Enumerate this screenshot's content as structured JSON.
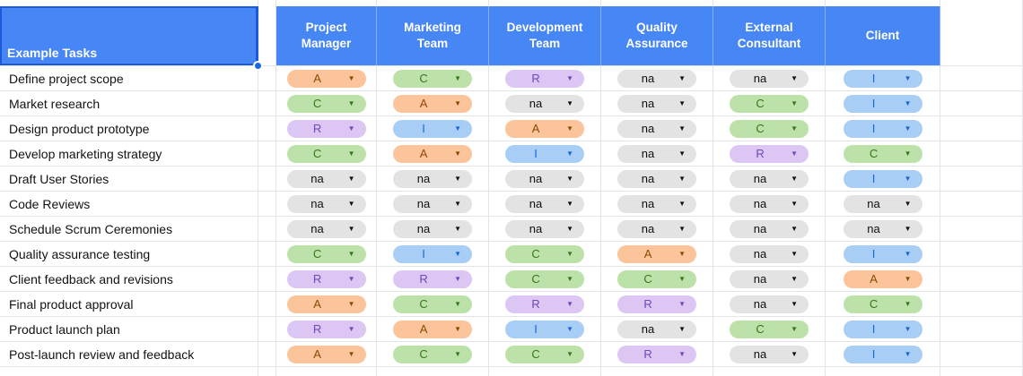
{
  "app": {
    "kind": "spreadsheet-raci-matrix"
  },
  "colors": {
    "header_bg": "#4786F5",
    "grid_line": "#E2E4E9",
    "selection_border": "#1B5BD9",
    "selection_handle": "#1A66E8"
  },
  "dropdown_arrow": "▼",
  "legend_colors": {
    "A": {
      "bg": "#FBC49B",
      "fg": "#8C4A03"
    },
    "C": {
      "bg": "#BDE2A9",
      "fg": "#38761D"
    },
    "R": {
      "bg": "#DCC7F4",
      "fg": "#6D49B8"
    },
    "I": {
      "bg": "#A9CEF6",
      "fg": "#1A66D9"
    },
    "na": {
      "bg": "#E3E3E4",
      "fg": "#111111"
    }
  },
  "table": {
    "task_header": "Example Tasks",
    "columns": [
      "Project Manager",
      "Marketing Team",
      "Development Team",
      "Quality Assurance",
      "External Consultant",
      "Client"
    ],
    "rows": [
      {
        "task": "Define project scope",
        "values": [
          "A",
          "C",
          "R",
          "na",
          "na",
          "I"
        ]
      },
      {
        "task": "Market research",
        "values": [
          "C",
          "A",
          "na",
          "na",
          "C",
          "I"
        ]
      },
      {
        "task": "Design product prototype",
        "values": [
          "R",
          "I",
          "A",
          "na",
          "C",
          "I"
        ]
      },
      {
        "task": "Develop marketing strategy",
        "values": [
          "C",
          "A",
          "I",
          "na",
          "R",
          "C"
        ]
      },
      {
        "task": "Draft User Stories",
        "values": [
          "na",
          "na",
          "na",
          "na",
          "na",
          "I"
        ]
      },
      {
        "task": "Code Reviews",
        "values": [
          "na",
          "na",
          "na",
          "na",
          "na",
          "na"
        ]
      },
      {
        "task": "Schedule Scrum Ceremonies",
        "values": [
          "na",
          "na",
          "na",
          "na",
          "na",
          "na"
        ]
      },
      {
        "task": "Quality assurance testing",
        "values": [
          "C",
          "I",
          "C",
          "A",
          "na",
          "I"
        ]
      },
      {
        "task": "Client feedback and revisions",
        "values": [
          "R",
          "R",
          "C",
          "C",
          "na",
          "A"
        ]
      },
      {
        "task": "Final product approval",
        "values": [
          "A",
          "C",
          "R",
          "R",
          "na",
          "C"
        ]
      },
      {
        "task": "Product launch plan",
        "values": [
          "R",
          "A",
          "I",
          "na",
          "C",
          "I"
        ]
      },
      {
        "task": "Post-launch review and feedback",
        "values": [
          "A",
          "C",
          "C",
          "R",
          "na",
          "I"
        ]
      }
    ]
  }
}
